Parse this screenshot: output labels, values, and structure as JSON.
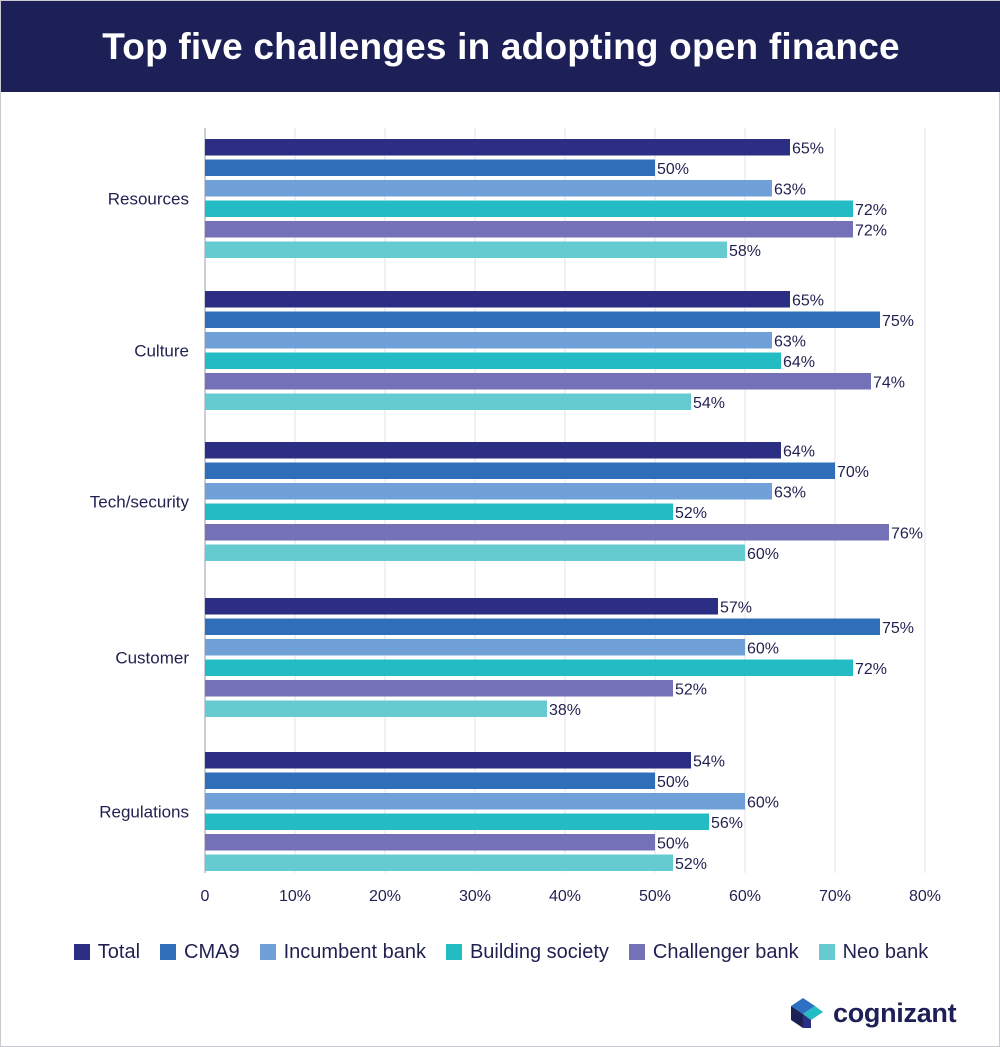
{
  "header": {
    "title": "Top five challenges in adopting open finance"
  },
  "logo": {
    "text": "cognizant",
    "icon": "cognizant-logo-icon"
  },
  "colors": {
    "header_bg": "#1d1f57",
    "total": "#2b2e82",
    "cma9": "#2f6fb9",
    "incumbent_bank": "#6fa0d8",
    "building_society": "#24bcc4",
    "challenger_bank": "#7471b6",
    "neo_bank": "#66cbd1"
  },
  "chart_data": {
    "type": "bar",
    "orientation": "horizontal",
    "title": "Top five challenges in adopting open finance",
    "categories": [
      "Resources",
      "Culture",
      "Tech/security",
      "Customer",
      "Regulations"
    ],
    "series": [
      {
        "name": "Total",
        "color": "#2b2e82",
        "values": [
          65,
          65,
          64,
          57,
          54
        ]
      },
      {
        "name": "CMA9",
        "color": "#2f6fb9",
        "values": [
          50,
          75,
          70,
          75,
          50
        ]
      },
      {
        "name": "Incumbent bank",
        "color": "#6fa0d8",
        "values": [
          63,
          63,
          63,
          60,
          60
        ]
      },
      {
        "name": "Building society",
        "color": "#24bcc4",
        "values": [
          72,
          64,
          52,
          72,
          56
        ]
      },
      {
        "name": "Challenger bank",
        "color": "#7471b6",
        "values": [
          72,
          74,
          76,
          52,
          50
        ]
      },
      {
        "name": "Neo bank",
        "color": "#66cbd1",
        "values": [
          58,
          54,
          60,
          38,
          52
        ]
      }
    ],
    "value_suffix": "%",
    "xlim": [
      0,
      80
    ],
    "xticks": [
      "0",
      "10%",
      "20%",
      "30%",
      "40%",
      "50%",
      "60%",
      "70%",
      "80%"
    ],
    "grid": true,
    "legend_position": "bottom"
  }
}
